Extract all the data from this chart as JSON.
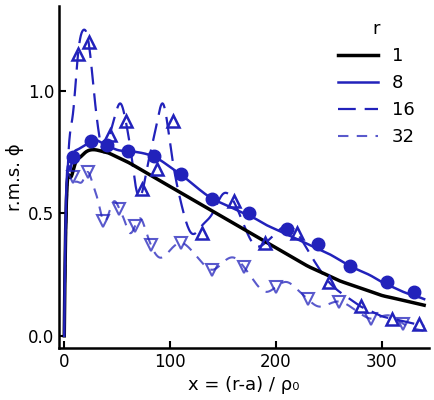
{
  "xlabel": "x = (r-a) / ρ₀",
  "ylabel": "r.m.s. ϕ",
  "xlim": [
    -5,
    345
  ],
  "ylim": [
    -0.05,
    1.35
  ],
  "yticks": [
    0.0,
    0.5,
    1.0
  ],
  "xticks": [
    0,
    100,
    200,
    300
  ],
  "blue_color": "#2222bb",
  "black_color": "#000000",
  "legend_title": "r",
  "background": "#ffffff",
  "r1_x": [
    0,
    2,
    5,
    10,
    15,
    20,
    25,
    30,
    35,
    40,
    50,
    60,
    70,
    80,
    90,
    100,
    110,
    120,
    130,
    140,
    150,
    160,
    170,
    180,
    190,
    200,
    210,
    220,
    230,
    240,
    250,
    260,
    270,
    280,
    290,
    300,
    310,
    320,
    330,
    340
  ],
  "r1_y": [
    0.0,
    0.55,
    0.65,
    0.7,
    0.73,
    0.75,
    0.76,
    0.76,
    0.755,
    0.75,
    0.73,
    0.71,
    0.685,
    0.66,
    0.635,
    0.61,
    0.585,
    0.56,
    0.535,
    0.51,
    0.485,
    0.46,
    0.435,
    0.41,
    0.385,
    0.36,
    0.335,
    0.31,
    0.285,
    0.265,
    0.245,
    0.225,
    0.21,
    0.195,
    0.18,
    0.165,
    0.155,
    0.145,
    0.135,
    0.125
  ],
  "r8_line_x": [
    0,
    2,
    5,
    8,
    12,
    16,
    20,
    25,
    30,
    35,
    40,
    50,
    60,
    70,
    80,
    90,
    100,
    110,
    120,
    130,
    140,
    150,
    160,
    170,
    180,
    190,
    200,
    210,
    220,
    230,
    240,
    250,
    260,
    270,
    280,
    290,
    300,
    310,
    320,
    330,
    340
  ],
  "r8_line_y": [
    0.0,
    0.6,
    0.68,
    0.73,
    0.76,
    0.77,
    0.78,
    0.795,
    0.8,
    0.79,
    0.78,
    0.76,
    0.755,
    0.75,
    0.74,
    0.72,
    0.69,
    0.66,
    0.625,
    0.59,
    0.56,
    0.54,
    0.52,
    0.5,
    0.48,
    0.455,
    0.435,
    0.415,
    0.395,
    0.375,
    0.355,
    0.335,
    0.31,
    0.285,
    0.265,
    0.245,
    0.22,
    0.2,
    0.18,
    0.165,
    0.15
  ],
  "r8_markers_x": [
    8,
    25,
    40,
    60,
    85,
    110,
    140,
    175,
    210,
    240,
    270,
    305,
    330
  ],
  "r8_markers_y": [
    0.73,
    0.795,
    0.78,
    0.755,
    0.735,
    0.66,
    0.56,
    0.5,
    0.435,
    0.375,
    0.285,
    0.22,
    0.18
  ],
  "r16_x": [
    0,
    3,
    8,
    13,
    18,
    23,
    28,
    33,
    38,
    43,
    48,
    53,
    58,
    63,
    68,
    73,
    78,
    83,
    88,
    93,
    98,
    103,
    110,
    120,
    130,
    140,
    150,
    160,
    170,
    180,
    190,
    200,
    210,
    220,
    230,
    240,
    250,
    260,
    270,
    280,
    290,
    300,
    310,
    320,
    330,
    340
  ],
  "r16_y": [
    0.0,
    0.65,
    0.9,
    1.15,
    1.25,
    1.2,
    1.0,
    0.82,
    0.75,
    0.82,
    0.9,
    0.95,
    0.88,
    0.75,
    0.6,
    0.58,
    0.68,
    0.78,
    0.88,
    0.95,
    0.85,
    0.7,
    0.55,
    0.42,
    0.45,
    0.5,
    0.58,
    0.55,
    0.45,
    0.37,
    0.38,
    0.42,
    0.45,
    0.42,
    0.35,
    0.28,
    0.22,
    0.18,
    0.15,
    0.12,
    0.1,
    0.08,
    0.07,
    0.06,
    0.05,
    0.04
  ],
  "r16_markers_x": [
    13,
    23,
    43,
    58,
    73,
    88,
    103,
    130,
    160,
    190,
    220,
    250,
    280,
    310,
    335
  ],
  "r16_markers_y": [
    1.15,
    1.2,
    0.82,
    0.88,
    0.6,
    0.68,
    0.88,
    0.42,
    0.55,
    0.38,
    0.42,
    0.22,
    0.12,
    0.07,
    0.05
  ],
  "r32_x": [
    0,
    3,
    8,
    12,
    17,
    22,
    27,
    32,
    37,
    42,
    47,
    52,
    57,
    62,
    67,
    72,
    77,
    82,
    90,
    100,
    110,
    120,
    130,
    140,
    150,
    160,
    170,
    180,
    190,
    200,
    210,
    220,
    230,
    240,
    250,
    260,
    270,
    280,
    290,
    300,
    310,
    320,
    330,
    340
  ],
  "r32_y": [
    0.0,
    0.6,
    0.65,
    0.63,
    0.63,
    0.67,
    0.62,
    0.55,
    0.47,
    0.5,
    0.55,
    0.52,
    0.47,
    0.42,
    0.45,
    0.48,
    0.43,
    0.37,
    0.32,
    0.35,
    0.38,
    0.35,
    0.3,
    0.27,
    0.3,
    0.32,
    0.28,
    0.22,
    0.18,
    0.2,
    0.22,
    0.19,
    0.15,
    0.12,
    0.13,
    0.14,
    0.12,
    0.09,
    0.07,
    0.08,
    0.08,
    0.05,
    0.03,
    0.02
  ],
  "r32_markers_x": [
    8,
    22,
    37,
    52,
    67,
    82,
    110,
    140,
    170,
    200,
    230,
    260,
    290,
    320
  ],
  "r32_markers_y": [
    0.65,
    0.67,
    0.47,
    0.52,
    0.45,
    0.37,
    0.38,
    0.27,
    0.28,
    0.2,
    0.15,
    0.14,
    0.07,
    0.05
  ]
}
